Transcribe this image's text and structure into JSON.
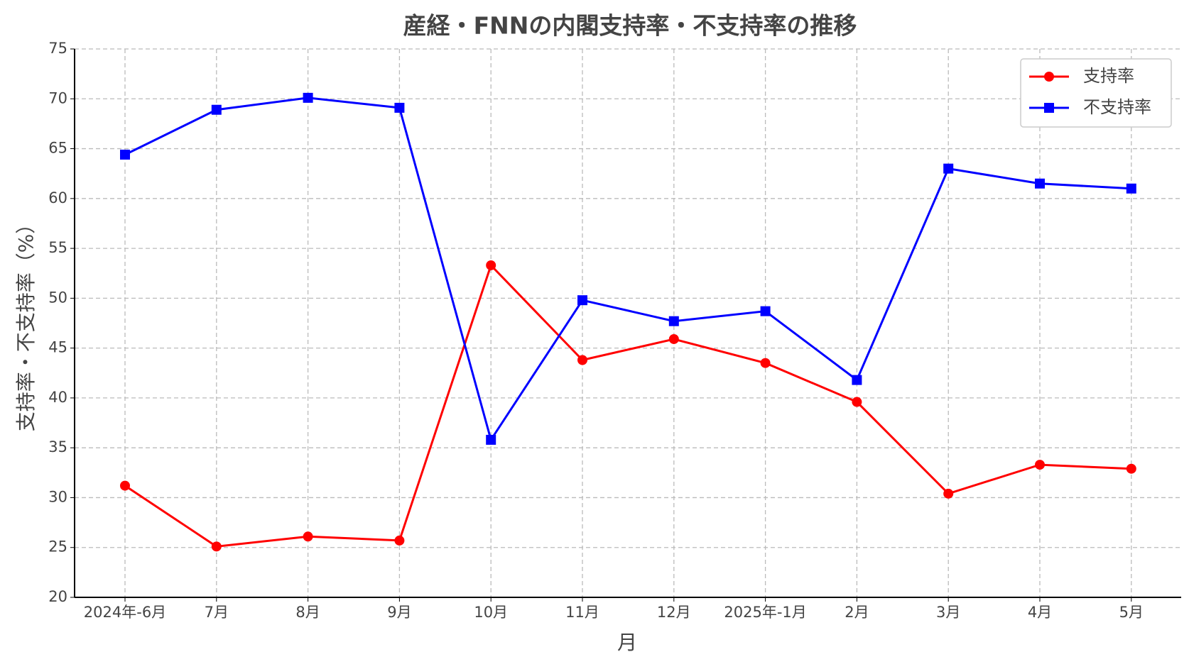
{
  "chart_data": {
    "type": "line",
    "title": "産経・FNNの内閣支持率・不支持率の推移",
    "x_label": "月",
    "y_label": "支持率・不支持率（%）",
    "categories": [
      "2024年-6月",
      "7月",
      "8月",
      "9月",
      "10月",
      "11月",
      "12月",
      "2025年-1月",
      "2月",
      "3月",
      "4月",
      "5月"
    ],
    "series": [
      {
        "name": "支持率",
        "color": "#ff0000",
        "marker": "circle",
        "values": [
          31.2,
          25.1,
          26.1,
          25.7,
          53.3,
          43.8,
          45.9,
          43.5,
          39.6,
          30.4,
          33.3,
          32.9
        ]
      },
      {
        "name": "不支持率",
        "color": "#0000ff",
        "marker": "square",
        "values": [
          64.4,
          68.9,
          70.1,
          69.1,
          35.8,
          49.8,
          47.7,
          48.7,
          41.8,
          63.0,
          61.5,
          61.0
        ]
      }
    ],
    "ylim": [
      20,
      75
    ],
    "yticks": [
      20,
      25,
      30,
      35,
      40,
      45,
      50,
      55,
      60,
      65,
      70,
      75
    ],
    "grid": true,
    "legend": "upper right"
  }
}
